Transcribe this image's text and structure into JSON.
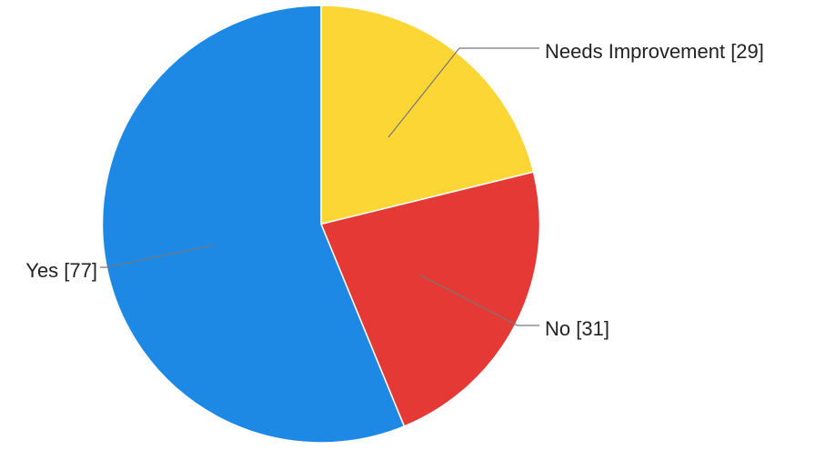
{
  "chart_data": {
    "type": "pie",
    "start_angle_deg": 0,
    "direction": "clockwise",
    "slices": [
      {
        "key": "needs-improvement",
        "label": "Needs Improvement [29]",
        "value": 29,
        "color": "#FBD635"
      },
      {
        "key": "no",
        "label": "No [31]",
        "value": 31,
        "color": "#E53935"
      },
      {
        "key": "yes",
        "label": "Yes [77]",
        "value": 77,
        "color": "#1E88E5"
      }
    ],
    "slice_border_color": "#ffffff",
    "leader_line_color": "#777777",
    "legend": "none",
    "title": ""
  }
}
